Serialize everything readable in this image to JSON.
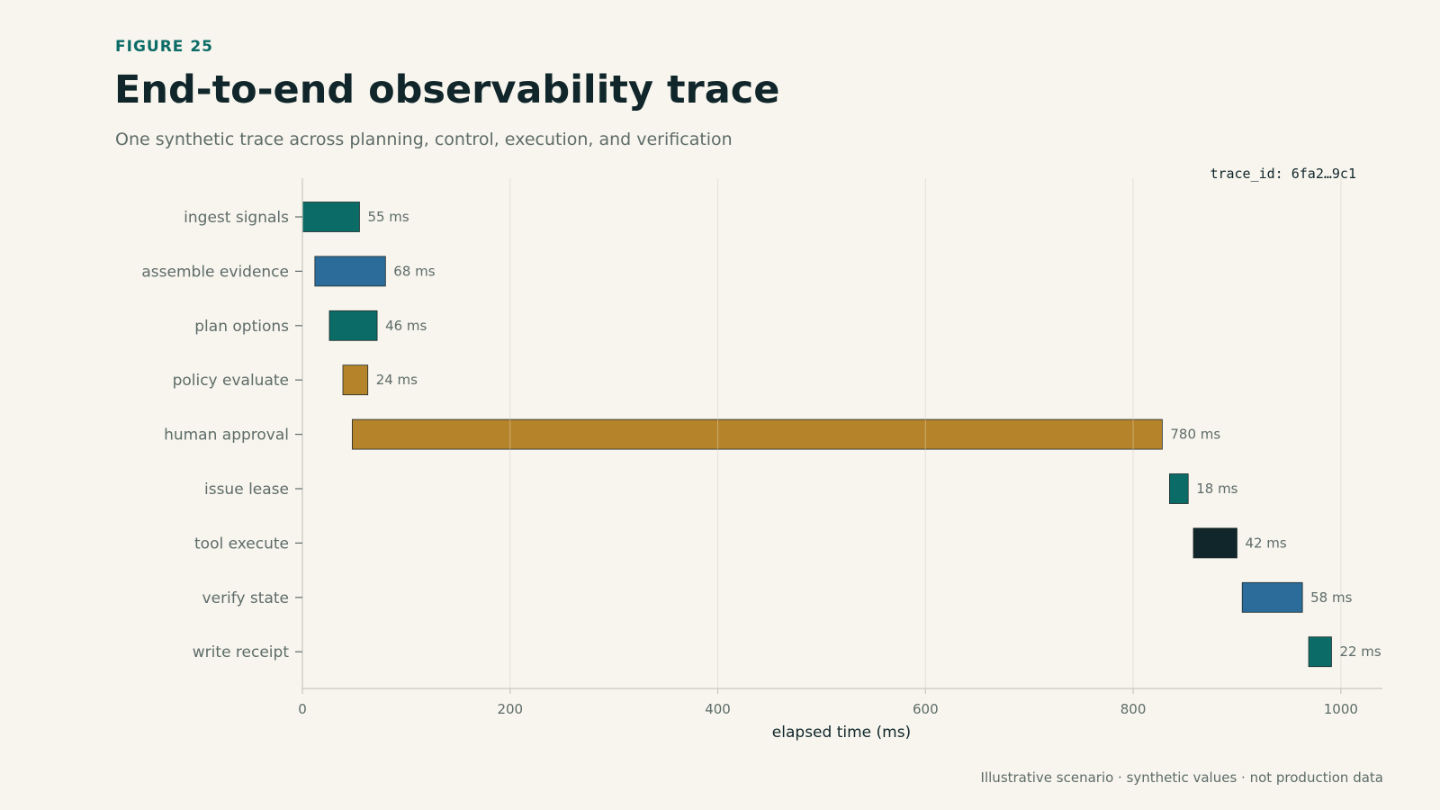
{
  "header": {
    "eyebrow": "FIGURE 25",
    "title": "End-to-end observability trace",
    "subtitle": "One synthetic trace across planning, control, execution, and verification"
  },
  "trace_id": "trace_id: 6fa2…9c1",
  "footnote": "Illustrative scenario · synthetic values · not production data",
  "colors": {
    "teal": "#0b6b66",
    "blue": "#2b6c9b",
    "gold": "#b5832a",
    "dark": "#10262a",
    "grid": "#dcdad0",
    "axis": "#c9c7bd"
  },
  "chart_data": {
    "type": "bar",
    "orientation": "horizontal-gantt",
    "xlabel": "elapsed time (ms)",
    "xlim": [
      0,
      1040
    ],
    "xticks": [
      0,
      200,
      400,
      600,
      800,
      1000
    ],
    "grid": true,
    "spans": [
      {
        "label": "ingest signals",
        "start": 0,
        "duration": 55,
        "value_label": "55 ms",
        "color": "#0b6b66"
      },
      {
        "label": "assemble evidence",
        "start": 12,
        "duration": 68,
        "value_label": "68 ms",
        "color": "#2b6c9b"
      },
      {
        "label": "plan options",
        "start": 26,
        "duration": 46,
        "value_label": "46 ms",
        "color": "#0b6b66"
      },
      {
        "label": "policy evaluate",
        "start": 39,
        "duration": 24,
        "value_label": "24 ms",
        "color": "#b5832a"
      },
      {
        "label": "human approval",
        "start": 48,
        "duration": 780,
        "value_label": "780 ms",
        "color": "#b5832a"
      },
      {
        "label": "issue lease",
        "start": 835,
        "duration": 18,
        "value_label": "18 ms",
        "color": "#0b6b66"
      },
      {
        "label": "tool execute",
        "start": 858,
        "duration": 42,
        "value_label": "42 ms",
        "color": "#10262a"
      },
      {
        "label": "verify state",
        "start": 905,
        "duration": 58,
        "value_label": "58 ms",
        "color": "#2b6c9b"
      },
      {
        "label": "write receipt",
        "start": 969,
        "duration": 22,
        "value_label": "22 ms",
        "color": "#0b6b66"
      }
    ]
  }
}
